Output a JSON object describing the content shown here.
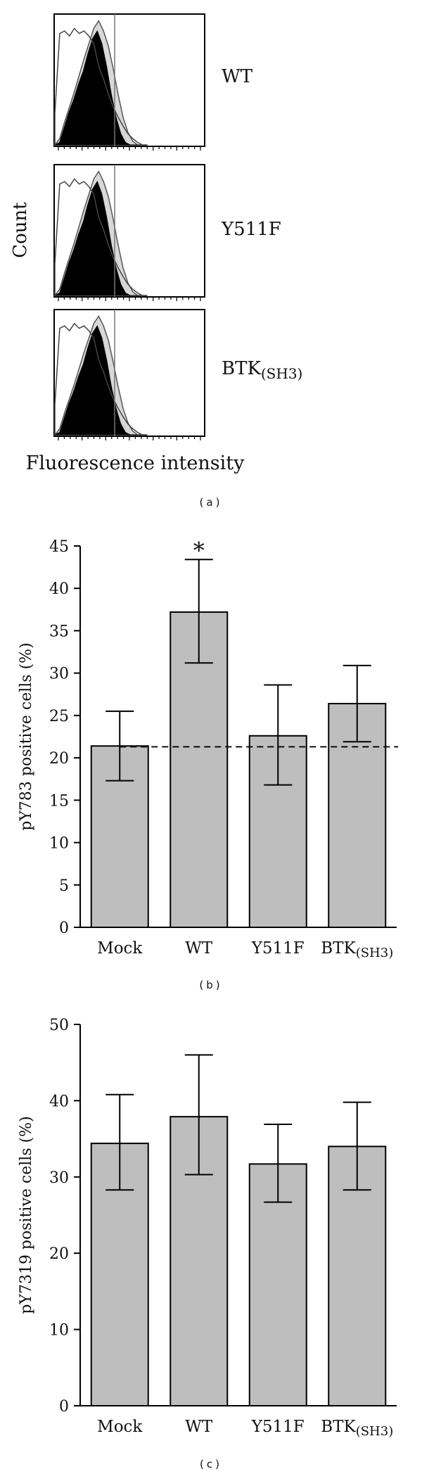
{
  "panel_a": {
    "panel_label": "(a)",
    "y_label": "Count",
    "x_label": "Fluorescence intensity",
    "histograms": [
      {
        "label": "WT",
        "sub": ""
      },
      {
        "label": "Y511F",
        "sub": ""
      },
      {
        "label": "BTK",
        "sub": "(SH3)"
      }
    ]
  },
  "chart_data": [
    {
      "type": "bar",
      "panel_label": "(b)",
      "title": "",
      "xlabel": "",
      "ylabel": "pY783 positive cells (%)",
      "categories": [
        {
          "main": "Mock",
          "sub": ""
        },
        {
          "main": "WT",
          "sub": ""
        },
        {
          "main": "Y511F",
          "sub": ""
        },
        {
          "main": "BTK",
          "sub": "(SH3)"
        }
      ],
      "values": [
        21.4,
        37.2,
        22.6,
        26.4
      ],
      "error_low": [
        17.3,
        31.2,
        16.8,
        21.9
      ],
      "error_high": [
        25.5,
        43.4,
        28.6,
        30.9
      ],
      "ylim": [
        0,
        45
      ],
      "yticks": [
        "0",
        "5",
        "10",
        "15",
        "20",
        "25",
        "30",
        "35",
        "40",
        "45"
      ],
      "reference_line": 21.3,
      "annotations": [
        {
          "category_index": 1,
          "text": "*"
        }
      ],
      "bar_color": "#bebebe",
      "grid": false
    },
    {
      "type": "bar",
      "panel_label": "(c)",
      "title": "",
      "xlabel": "",
      "ylabel": "pY7319 positive cells (%)",
      "categories": [
        {
          "main": "Mock",
          "sub": ""
        },
        {
          "main": "WT",
          "sub": ""
        },
        {
          "main": "Y511F",
          "sub": ""
        },
        {
          "main": "BTK",
          "sub": "(SH3)"
        }
      ],
      "values": [
        34.4,
        37.9,
        31.7,
        34.0
      ],
      "error_low": [
        28.3,
        30.3,
        26.7,
        28.3
      ],
      "error_high": [
        40.8,
        46.0,
        36.9,
        39.8
      ],
      "ylim": [
        0,
        50
      ],
      "yticks": [
        "0",
        "10",
        "20",
        "30",
        "40",
        "50"
      ],
      "annotations": [],
      "bar_color": "#bebebe",
      "grid": false
    }
  ]
}
